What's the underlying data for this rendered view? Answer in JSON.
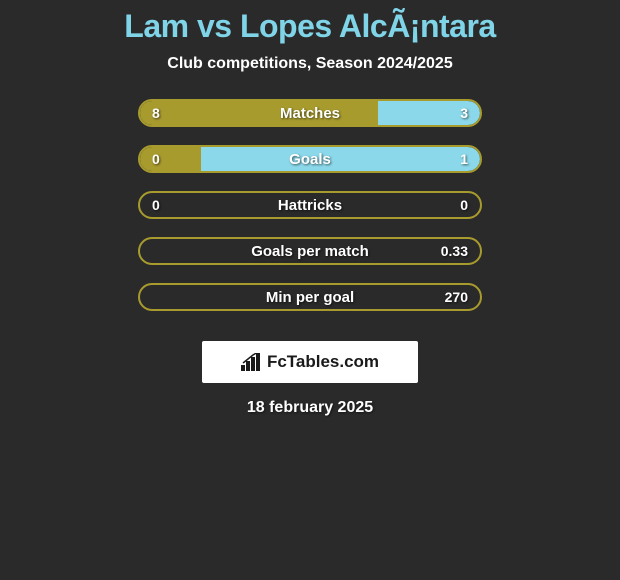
{
  "title": "Lam vs Lopes AlcÃ¡ntara",
  "subtitle": "Club competitions, Season 2024/2025",
  "colors": {
    "background": "#2a2a2a",
    "title": "#7fd4e8",
    "text": "#ffffff",
    "olive": "#a89b2e",
    "cyan": "#8bd8ea",
    "ellipse": "#ffffff",
    "logo_bg": "#ffffff",
    "logo_text": "#1a1a1a"
  },
  "ellipses": {
    "left_row": [
      0,
      1
    ],
    "right_row": [
      0,
      1
    ]
  },
  "bars": [
    {
      "label": "Matches",
      "left_value": "8",
      "right_value": "3",
      "left_pct": 70,
      "right_pct": 30,
      "left_color": "#a89b2e",
      "right_color": "#8bd8ea",
      "border_color": "#a89b2e",
      "show_left_ellipse": true,
      "show_right_ellipse": true
    },
    {
      "label": "Goals",
      "left_value": "0",
      "right_value": "1",
      "left_pct": 18,
      "right_pct": 82,
      "left_color": "#a89b2e",
      "right_color": "#8bd8ea",
      "border_color": "#a89b2e",
      "show_left_ellipse": true,
      "show_right_ellipse": true
    },
    {
      "label": "Hattricks",
      "left_value": "0",
      "right_value": "0",
      "left_pct": 0,
      "right_pct": 0,
      "left_color": "#a89b2e",
      "right_color": "#8bd8ea",
      "border_color": "#a89b2e",
      "show_left_ellipse": false,
      "show_right_ellipse": false
    },
    {
      "label": "Goals per match",
      "left_value": "",
      "right_value": "0.33",
      "left_pct": 0,
      "right_pct": 0,
      "left_color": "#a89b2e",
      "right_color": "#8bd8ea",
      "border_color": "#a89b2e",
      "show_left_ellipse": false,
      "show_right_ellipse": false
    },
    {
      "label": "Min per goal",
      "left_value": "",
      "right_value": "270",
      "left_pct": 0,
      "right_pct": 0,
      "left_color": "#a89b2e",
      "right_color": "#8bd8ea",
      "border_color": "#a89b2e",
      "show_left_ellipse": false,
      "show_right_ellipse": false
    }
  ],
  "logo_text": "FcTables.com",
  "date": "18 february 2025"
}
